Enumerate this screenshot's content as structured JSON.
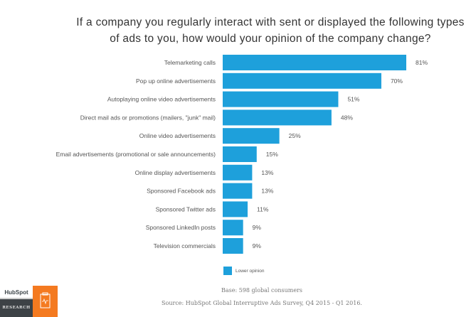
{
  "chart_data": {
    "type": "bar",
    "orientation": "horizontal",
    "title": "If a company you regularly interact with sent or displayed the following types of ads to you, how would your opinion of the company change?",
    "categories": [
      "Telemarketing calls",
      "Pop up online advertisements",
      "Autoplaying online video advertisements",
      "Direct mail ads or promotions (mailers, \"junk\" mail)",
      "Online video advertisements",
      "Email advertisements (promotional or sale announcements)",
      "Online display advertisements",
      "Sponsored Facebook ads",
      "Sponsored Twitter ads",
      "Sponsored LinkedIn posts",
      "Television commercials"
    ],
    "series": [
      {
        "name": "Lower opinion",
        "values": [
          81,
          70,
          51,
          48,
          25,
          15,
          13,
          13,
          11,
          9,
          9
        ],
        "color": "#1ea0db"
      }
    ],
    "value_suffix": "%",
    "xlim": [
      0,
      100
    ],
    "grid": false,
    "legend_placement": "bottom"
  },
  "footer": {
    "base": "Base: 598 global consumers",
    "source": "Source: HubSpot Global Interruptive Ads Survey, Q4 2015 - Q1 2016.",
    "logo": "HubSpot",
    "badge": "RESEARCH",
    "badge_color": "#f47a20",
    "badge_icon": "clipboard-pulse-icon"
  }
}
